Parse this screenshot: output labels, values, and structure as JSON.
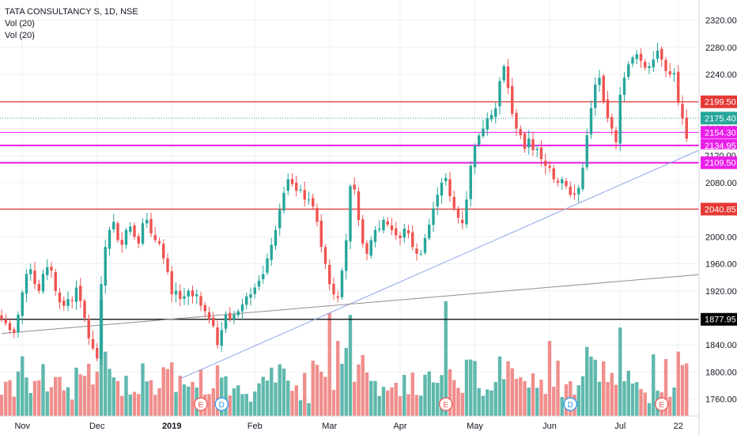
{
  "header": {
    "symbol_line": "TATA CONSULTANCY S, 1D, NSE",
    "indicators": [
      "Vol (20)",
      "Vol (20)"
    ]
  },
  "colors": {
    "up": "#26a69a",
    "down": "#ef5350",
    "vol_up": "#5fb8ad",
    "vol_down": "#f08e8c",
    "red_line": "#e53935",
    "magenta_line": "#e91ee9",
    "teal_dotted": "#26a69a",
    "black_line": "#000000",
    "trend_blue": "#8da4e6",
    "trend_gray": "#8f8f8f",
    "grid": "#eef0f3",
    "axis_text": "#131722"
  },
  "chart_data": {
    "type": "candlestick",
    "title": "TATA CONSULTANCY S, 1D, NSE",
    "y_axis": {
      "range": [
        1735,
        2350
      ],
      "ticks": [
        1760,
        1800,
        1840,
        1880,
        1920,
        1960,
        2000,
        2040,
        2080,
        2120,
        2160,
        2200,
        2240,
        2280,
        2320
      ],
      "tick_labels": [
        "1760.00",
        "1800.00",
        "1840.00",
        "1880.00",
        "1920.00",
        "1960.00",
        "2000.00",
        "2040.00",
        "2080.00",
        "2120.00",
        "2160.00",
        "2200.00",
        "2240.00",
        "2280.00",
        "2320.00"
      ],
      "position": "right"
    },
    "x_axis": {
      "labels": [
        "Nov",
        "Dec",
        "2019",
        "Feb",
        "Mar",
        "Apr",
        "May",
        "Jun",
        "Jul",
        "22"
      ],
      "label_bar_index": [
        5,
        23,
        41,
        61,
        79,
        96,
        114,
        132,
        149,
        163
      ],
      "bar_count": 168
    },
    "grid": true,
    "horizontal_levels": [
      {
        "label": "2199.50",
        "value": 2199.5,
        "style": "red"
      },
      {
        "label": "2175.40",
        "value": 2175.4,
        "style": "teal-dotted"
      },
      {
        "label": "2154.30",
        "value": 2154.3,
        "style": "magenta-thin"
      },
      {
        "label": "2134.95",
        "value": 2134.95,
        "style": "magenta"
      },
      {
        "label": "2120.00",
        "value": 2120.0,
        "style": "hidden-label"
      },
      {
        "label": "2109.50",
        "value": 2109.5,
        "style": "magenta"
      },
      {
        "label": "2040.85",
        "value": 2040.85,
        "style": "red"
      },
      {
        "label": "1877.95",
        "value": 1877.95,
        "style": "black"
      }
    ],
    "trend_lines": [
      {
        "name": "",
        "from": {
          "bar": 43,
          "value": 1790
        },
        "to": {
          "bar": 168,
          "value": 2128
        },
        "color": "blue"
      },
      {
        "name": "",
        "from": {
          "bar": 0,
          "value": 1857
        },
        "to": {
          "bar": 168,
          "value": 1944
        },
        "color": "gray"
      }
    ],
    "event_markers": [
      {
        "label": "E",
        "bar": 48,
        "kind": "earnings"
      },
      {
        "label": "D",
        "bar": 53,
        "kind": "dividend"
      },
      {
        "label": "E",
        "bar": 107,
        "kind": "earnings"
      },
      {
        "label": "D",
        "bar": 137,
        "kind": "dividend"
      },
      {
        "label": "E",
        "bar": 159,
        "kind": "earnings"
      }
    ],
    "closes": [
      1878,
      1872,
      1862,
      1858,
      1885,
      1918,
      1945,
      1952,
      1930,
      1920,
      1945,
      1955,
      1950,
      1920,
      1903,
      1898,
      1908,
      1905,
      1925,
      1905,
      1880,
      1850,
      1835,
      1820,
      1930,
      1985,
      2010,
      2022,
      1995,
      1988,
      2010,
      2015,
      2000,
      1990,
      2020,
      2025,
      2005,
      1995,
      1990,
      1968,
      1948,
      1915,
      1920,
      1908,
      1912,
      1920,
      1912,
      1915,
      1898,
      1890,
      1878,
      1868,
      1840,
      1862,
      1885,
      1878,
      1885,
      1890,
      1900,
      1912,
      1915,
      1925,
      1935,
      1945,
      1968,
      1988,
      2010,
      2040,
      2065,
      2085,
      2078,
      2068,
      2070,
      2055,
      2055,
      2045,
      2022,
      1985,
      1960,
      1930,
      1915,
      1910,
      1950,
      1995,
      2075,
      2070,
      2025,
      1990,
      1975,
      1995,
      2010,
      2012,
      2025,
      2018,
      2010,
      2002,
      1998,
      2012,
      2005,
      1985,
      1975,
      1975,
      1998,
      2018,
      2042,
      2062,
      2080,
      2087,
      2060,
      2042,
      2028,
      2020,
      2055,
      2105,
      2135,
      2150,
      2160,
      2175,
      2180,
      2190,
      2230,
      2252,
      2220,
      2182,
      2160,
      2150,
      2130,
      2145,
      2128,
      2130,
      2115,
      2105,
      2102,
      2085,
      2080,
      2085,
      2075,
      2062,
      2062,
      2072,
      2102,
      2150,
      2190,
      2225,
      2235,
      2200,
      2175,
      2160,
      2140,
      2210,
      2235,
      2255,
      2265,
      2270,
      2260,
      2250,
      2252,
      2262,
      2275,
      2262,
      2245,
      2240,
      2242,
      2198,
      2175,
      2145
    ]
  }
}
